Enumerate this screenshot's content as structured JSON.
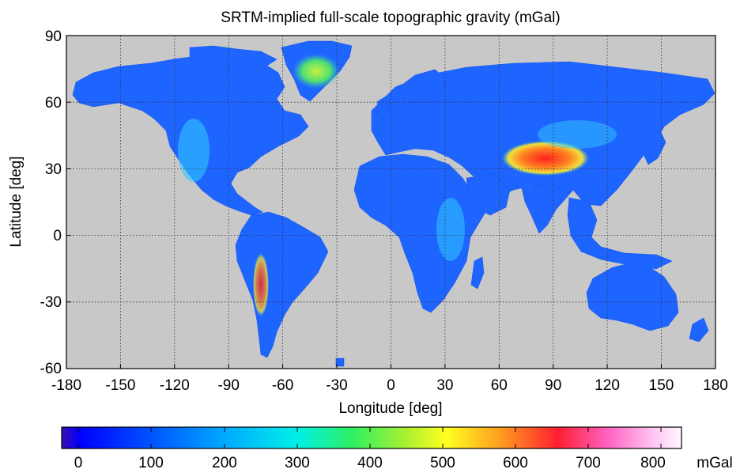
{
  "title": "SRTM-implied full-scale topographic gravity (mGal)",
  "map": {
    "xlabel": "Longitude [deg]",
    "ylabel": "Latitude [deg]",
    "xlim": [
      -180,
      180
    ],
    "ylim": [
      -60,
      90
    ],
    "xticks": [
      "-180",
      "-150",
      "-120",
      "-90",
      "-60",
      "-30",
      "0",
      "30",
      "60",
      "90",
      "120",
      "150",
      "180"
    ],
    "yticks": [
      "90",
      "60",
      "30",
      "0",
      "-30",
      "-60"
    ],
    "grid": true,
    "ocean_color": "#c8c8c8",
    "land_base_color": "#1e64ff"
  },
  "colorbar": {
    "unit": "mGal",
    "range": [
      -20,
      830
    ],
    "ticks": [
      "0",
      "100",
      "200",
      "300",
      "400",
      "500",
      "600",
      "700",
      "800"
    ]
  }
}
